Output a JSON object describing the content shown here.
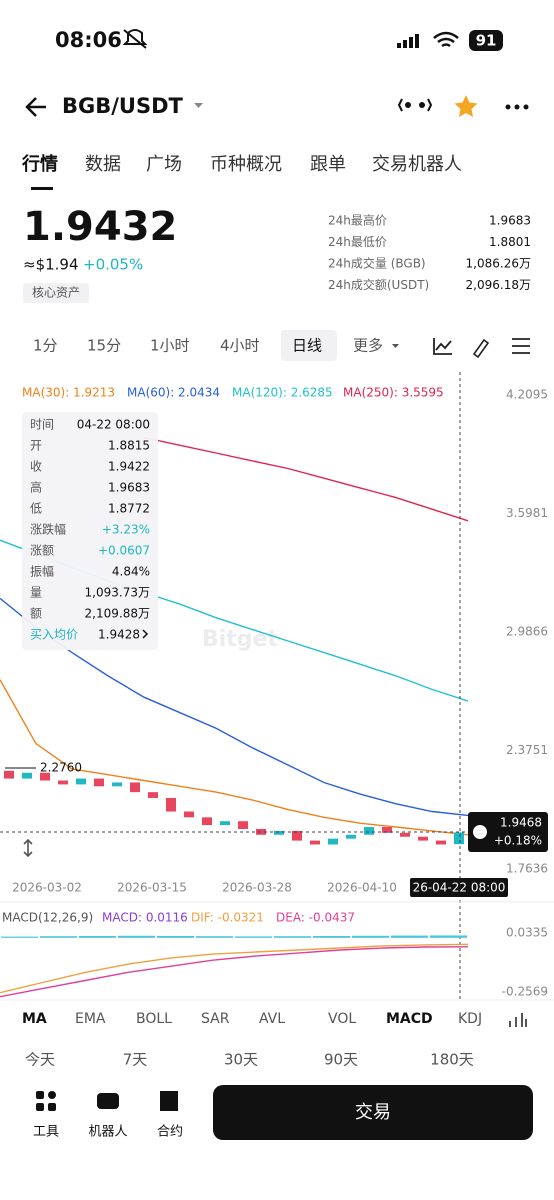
{
  "status_bar": {
    "time": "08:06",
    "battery": "91"
  },
  "header": {
    "pair": "BGB/USDT"
  },
  "tabs": [
    "行情",
    "数据",
    "广场",
    "币种概况",
    "跟单",
    "交易机器人"
  ],
  "price": {
    "last": "1.9432",
    "fiat": "≈$1.94",
    "change": "+0.05%",
    "tag": "核心资产"
  },
  "stats": [
    [
      "24h最高价",
      "1.9683"
    ],
    [
      "24h最低价",
      "1.8801"
    ],
    [
      "24h成交量 (BGB)",
      "1,086.26万"
    ],
    [
      "24h成交额(USDT)",
      "2,096.18万"
    ]
  ],
  "intervals": [
    "1分",
    "15分",
    "1小时",
    "4小时",
    "日线",
    "更多"
  ],
  "chart_data": [
    {
      "type": "candlestick",
      "watermark": "Bitget",
      "series": [
        {
          "name": "MA(30): 1.9213",
          "color": "#f0801a",
          "values": [
            2.73,
            2.4,
            2.27,
            2.24,
            2.21,
            2.18,
            2.15,
            2.11,
            2.06,
            2.02,
            1.99,
            1.97,
            1.95,
            1.93
          ]
        },
        {
          "name": "MA(60): 2.0434",
          "color": "#2a5ee0",
          "values": [
            3.15,
            3.0,
            2.87,
            2.75,
            2.64,
            2.56,
            2.48,
            2.38,
            2.29,
            2.2,
            2.14,
            2.09,
            2.05,
            2.03
          ]
        },
        {
          "name": "MA(120): 2.6285",
          "color": "#22c0d0",
          "values": [
            3.45,
            3.38,
            3.31,
            3.24,
            3.18,
            3.12,
            3.05,
            2.99,
            2.93,
            2.87,
            2.81,
            2.75,
            2.68,
            2.62
          ]
        },
        {
          "name": "MA(250): 3.5595",
          "color": "#e0244c",
          "values": [
            null,
            null,
            null,
            null,
            3.98,
            3.94,
            3.9,
            3.86,
            3.82,
            3.77,
            3.72,
            3.67,
            3.61,
            3.55
          ]
        }
      ],
      "candles": [
        [
          2.26,
          2.22
        ],
        [
          2.22,
          2.25
        ],
        [
          2.25,
          2.21
        ],
        [
          2.21,
          2.19
        ],
        [
          2.19,
          2.22
        ],
        [
          2.22,
          2.18
        ],
        [
          2.18,
          2.2
        ],
        [
          2.2,
          2.15
        ],
        [
          2.15,
          2.12
        ],
        [
          2.12,
          2.05
        ],
        [
          2.05,
          2.02
        ],
        [
          2.02,
          1.98
        ],
        [
          1.98,
          2.0
        ],
        [
          2.0,
          1.96
        ],
        [
          1.96,
          1.93
        ],
        [
          1.93,
          1.95
        ],
        [
          1.95,
          1.9
        ],
        [
          1.9,
          1.88
        ],
        [
          1.88,
          1.91
        ],
        [
          1.91,
          1.93
        ],
        [
          1.93,
          1.97
        ],
        [
          1.97,
          1.94
        ],
        [
          1.94,
          1.92
        ],
        [
          1.92,
          1.9
        ],
        [
          1.9,
          1.88
        ],
        [
          1.8815,
          1.9422
        ]
      ],
      "up_color": "#20b8c2",
      "down_color": "#e8455f",
      "ylim": [
        1.707,
        4.318
      ],
      "yticks": [
        4.2095,
        3.5981,
        2.9866,
        2.3751,
        1.7636
      ],
      "x_labels": [
        "2026-03-02",
        "2026-03-15",
        "2026-03-28",
        "2026-04-10"
      ],
      "high_label": "2.2760",
      "last_price": "1.9468",
      "last_change": "+0.18%",
      "crosshair_label": "26-04-22 08:00"
    },
    {
      "type": "line",
      "title": "MACD(12,26,9)",
      "series": [
        {
          "name": "MACD: 0.0116",
          "color": "#8a3cd8",
          "style": "bar",
          "bar_color": "#4ac8d8",
          "values": [
            0.006,
            0.008,
            0.009,
            0.01,
            0.009,
            0.008,
            0.007,
            0.008,
            0.009,
            0.01,
            0.011,
            0.0116
          ]
        },
        {
          "name": "DIF: -0.0321",
          "color": "#f0a040",
          "values": [
            -0.27,
            -0.22,
            -0.17,
            -0.13,
            -0.1,
            -0.08,
            -0.07,
            -0.06,
            -0.05,
            -0.04,
            -0.035,
            -0.032
          ]
        },
        {
          "name": "DEA: -0.0437",
          "color": "#e0409a",
          "values": [
            -0.29,
            -0.25,
            -0.21,
            -0.17,
            -0.14,
            -0.11,
            -0.09,
            -0.075,
            -0.06,
            -0.05,
            -0.045,
            -0.044
          ]
        }
      ],
      "ylim": [
        -0.306,
        0.127
      ],
      "yticks": [
        0.0335,
        -0.2569
      ]
    }
  ],
  "tooltip": [
    [
      "时间",
      "04-22 08:00"
    ],
    [
      "开",
      "1.8815"
    ],
    [
      "收",
      "1.9422"
    ],
    [
      "高",
      "1.9683"
    ],
    [
      "低",
      "1.8772"
    ],
    [
      "涨跌幅",
      "+3.23%"
    ],
    [
      "涨额",
      "+0.0607"
    ],
    [
      "振幅",
      "4.84%"
    ],
    [
      "量",
      "1,093.73万"
    ],
    [
      "额",
      "2,109.88万"
    ],
    [
      "买入均价",
      "1.9428"
    ]
  ],
  "indicators": [
    "MA",
    "EMA",
    "BOLL",
    "SAR",
    "AVL",
    "VOL",
    "MACD",
    "KDJ"
  ],
  "periods": [
    "今天",
    "7天",
    "30天",
    "90天",
    "180天"
  ],
  "bottom_bar": {
    "tools": "工具",
    "bot": "机器人",
    "futures": "合约",
    "trade": "交易"
  }
}
